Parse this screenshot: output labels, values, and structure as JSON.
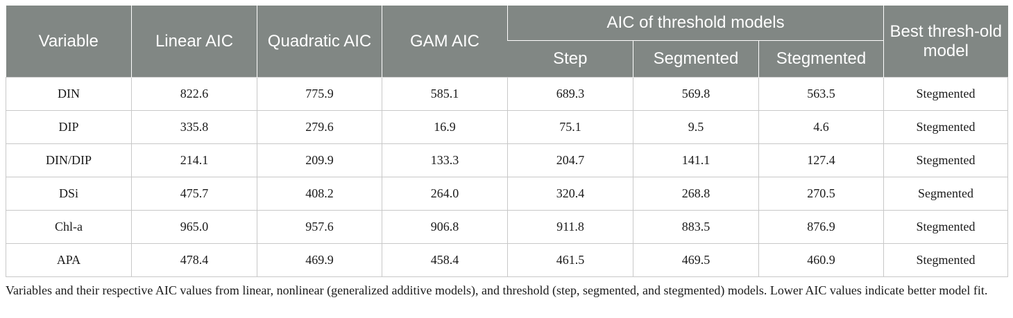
{
  "table": {
    "headers": {
      "variable": "Variable",
      "linear_aic": "Linear AIC",
      "quadratic_aic": "Quadratic AIC",
      "gam_aic": "GAM AIC",
      "threshold_group": "AIC of threshold models",
      "step": "Step",
      "segmented": "Segmented",
      "stegmented": "Stegmented",
      "best_model": "Best thresh-old model"
    },
    "rows": [
      {
        "variable": "DIN",
        "linear": "822.6",
        "quadratic": "775.9",
        "gam": "585.1",
        "step": "689.3",
        "segmented": "569.8",
        "stegmented": "563.5",
        "best": "Stegmented"
      },
      {
        "variable": "DIP",
        "linear": "335.8",
        "quadratic": "279.6",
        "gam": "16.9",
        "step": "75.1",
        "segmented": "9.5",
        "stegmented": "4.6",
        "best": "Stegmented"
      },
      {
        "variable": "DIN/DIP",
        "linear": "214.1",
        "quadratic": "209.9",
        "gam": "133.3",
        "step": "204.7",
        "segmented": "141.1",
        "stegmented": "127.4",
        "best": "Stegmented"
      },
      {
        "variable": "DSi",
        "linear": "475.7",
        "quadratic": "408.2",
        "gam": "264.0",
        "step": "320.4",
        "segmented": "268.8",
        "stegmented": "270.5",
        "best": "Segmented"
      },
      {
        "variable": "Chl-a",
        "linear": "965.0",
        "quadratic": "957.6",
        "gam": "906.8",
        "step": "911.8",
        "segmented": "883.5",
        "stegmented": "876.9",
        "best": "Stegmented"
      },
      {
        "variable": "APA",
        "linear": "478.4",
        "quadratic": "469.9",
        "gam": "458.4",
        "step": "461.5",
        "segmented": "469.5",
        "stegmented": "460.9",
        "best": "Stegmented"
      }
    ]
  },
  "caption": "Variables and their respective AIC values from linear, nonlinear (generalized additive models), and threshold (step, segmented, and stegmented) models. Lower AIC values indicate better model fit.",
  "colors": {
    "header_background": "#818784",
    "header_text": "#ffffff",
    "grid_lines": "#c8c8c8"
  }
}
